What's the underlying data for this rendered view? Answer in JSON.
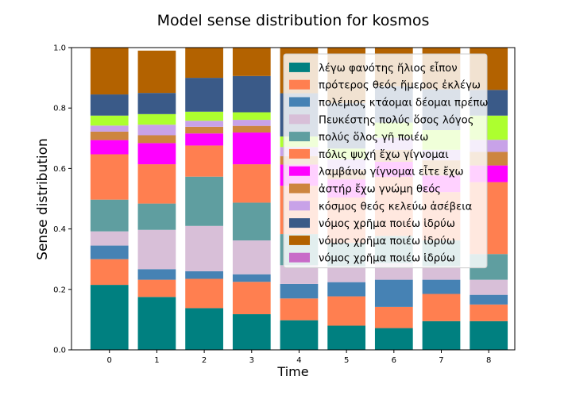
{
  "chart_data": {
    "type": "bar",
    "stacked": true,
    "title": "Model sense distribution for kosmos",
    "xlabel": "Time",
    "ylabel": "Sense distribution",
    "ylim": [
      0,
      1.0
    ],
    "yticks": [
      "0.0",
      "0.2",
      "0.4",
      "0.6",
      "0.8",
      "1.0"
    ],
    "categories": [
      "0",
      "1",
      "2",
      "3",
      "4",
      "5",
      "6",
      "7",
      "8"
    ],
    "legend_position": "upper right",
    "grid": false,
    "series": [
      {
        "name": "λέγω φανότης ἥλιος εἶπον",
        "color": "#008080",
        "values": [
          0.215,
          0.175,
          0.138,
          0.118,
          0.098,
          0.08,
          0.072,
          0.095,
          0.095
        ]
      },
      {
        "name": "πρότερος θεός ἥμερος ἐκλέγω",
        "color": "#ff7f50",
        "values": [
          0.085,
          0.057,
          0.097,
          0.107,
          0.072,
          0.097,
          0.07,
          0.09,
          0.055
        ]
      },
      {
        "name": "πολέμιος κτάομαι δέομαι πρέπω",
        "color": "#4682b4",
        "values": [
          0.045,
          0.035,
          0.025,
          0.025,
          0.048,
          0.047,
          0.09,
          0.047,
          0.032
        ]
      },
      {
        "name": "Πευκέστης πολύς ὅσος λόγος",
        "color": "#d8bfd8",
        "values": [
          0.047,
          0.13,
          0.15,
          0.112,
          0.062,
          0.053,
          0.055,
          0.045,
          0.05
        ]
      },
      {
        "name": "πολύς ὅλος γῆ ποιέω",
        "color": "#5f9ea0",
        "values": [
          0.105,
          0.087,
          0.163,
          0.125,
          0.103,
          0.077,
          0.09,
          0.085,
          0.085
        ]
      },
      {
        "name": "πόλις ψυχή ἔχω γίγνομαι",
        "color": "#ff7f50",
        "values": [
          0.15,
          0.13,
          0.103,
          0.127,
          0.16,
          0.15,
          0.195,
          0.16,
          0.238
        ]
      },
      {
        "name": "λαμβάνω γίγνομαι εἶτε ἔχω",
        "color": "#ff00ff",
        "values": [
          0.047,
          0.07,
          0.04,
          0.105,
          0.07,
          0.06,
          0.05,
          0.055,
          0.055
        ]
      },
      {
        "name": "ἀστήρ ἔχω γνώμη θεός",
        "color": "#cd853f",
        "values": [
          0.028,
          0.026,
          0.022,
          0.022,
          0.028,
          0.032,
          0.04,
          0.05,
          0.045
        ]
      },
      {
        "name": "κόσμος θεός κελεύω ἀσέβεια",
        "color": "#c8a2e8",
        "values": [
          0.02,
          0.035,
          0.02,
          0.02,
          0.03,
          0.035,
          0.04,
          0.035,
          0.04
        ]
      },
      {
        "name": "",
        "color": "#adff2f",
        "values": [
          0.033,
          0.035,
          0.03,
          0.025,
          0.035,
          0.035,
          0.05,
          0.065,
          0.08
        ]
      },
      {
        "name": "νόμος χρῆμα ποιέω ἱδρύω",
        "color": "#3a5a88",
        "values": [
          0.07,
          0.07,
          0.112,
          0.12,
          0.143,
          0.15,
          0.12,
          0.135,
          0.085
        ]
      },
      {
        "name": "νόμος χρῆμα ποιέω ἱδρύω",
        "color": "#b36200",
        "values": [
          0.155,
          0.14,
          0.1,
          0.094,
          0.151,
          0.184,
          0.128,
          0.138,
          0.14
        ]
      },
      {
        "name": "νόμος χρῆμα ποιέω ἱδρύω",
        "color": "#c86bc8",
        "values": [
          0,
          0,
          0,
          0,
          0,
          0,
          0,
          0,
          0
        ]
      }
    ]
  }
}
